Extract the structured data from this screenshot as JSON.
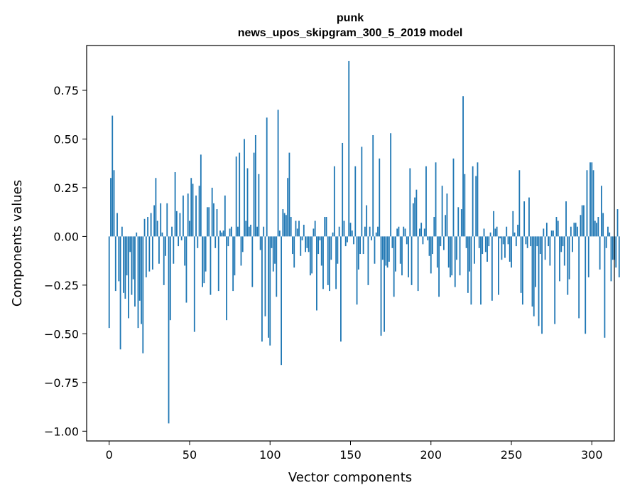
{
  "chart_data": {
    "type": "bar",
    "title": "punk",
    "subtitle": "news_upos_skipgram_300_5_2019 model",
    "xlabel": "Vector components",
    "ylabel": "Components values",
    "xlim": [
      -14,
      314
    ],
    "ylim": [
      -1.05,
      0.98
    ],
    "xticks": [
      0,
      50,
      100,
      150,
      200,
      250,
      300
    ],
    "yticks": [
      -1.0,
      -0.75,
      -0.5,
      -0.25,
      0.0,
      0.25,
      0.5,
      0.75
    ],
    "ytick_labels": [
      "−1.00",
      "−0.75",
      "−0.50",
      "−0.25",
      "0.00",
      "0.25",
      "0.50",
      "0.75"
    ],
    "bar_color": "#1f77b4",
    "grid": false,
    "values": [
      -0.47,
      0.3,
      0.62,
      0.34,
      -0.28,
      0.12,
      -0.23,
      -0.58,
      0.05,
      -0.29,
      -0.32,
      -0.2,
      -0.42,
      -0.08,
      -0.3,
      -0.22,
      -0.36,
      0.02,
      -0.47,
      -0.33,
      -0.45,
      -0.6,
      0.09,
      -0.21,
      0.1,
      -0.18,
      0.12,
      -0.17,
      0.16,
      0.3,
      0.08,
      -0.14,
      0.17,
      0.02,
      -0.25,
      -0.1,
      0.17,
      -0.96,
      -0.43,
      0.05,
      -0.14,
      0.33,
      0.13,
      -0.05,
      0.12,
      -0.02,
      0.21,
      -0.15,
      -0.34,
      0.22,
      0.08,
      0.3,
      0.27,
      -0.49,
      0.21,
      -0.06,
      0.26,
      0.42,
      -0.26,
      -0.24,
      -0.18,
      0.15,
      0.15,
      -0.3,
      0.25,
      0.17,
      -0.06,
      0.14,
      -0.28,
      0.03,
      0.02,
      0.03,
      0.21,
      -0.43,
      -0.05,
      0.04,
      0.05,
      -0.28,
      -0.2,
      0.41,
      0.05,
      0.43,
      -0.15,
      -0.08,
      0.5,
      0.08,
      0.35,
      0.05,
      0.06,
      -0.26,
      0.43,
      0.52,
      0.05,
      0.32,
      -0.07,
      -0.54,
      0.05,
      -0.41,
      0.61,
      -0.52,
      -0.56,
      -0.06,
      -0.18,
      -0.14,
      -0.31,
      0.65,
      0.03,
      -0.66,
      0.14,
      0.12,
      0.11,
      0.3,
      0.43,
      0.1,
      -0.09,
      -0.16,
      0.08,
      0.04,
      0.08,
      -0.1,
      -0.02,
      0.06,
      -0.08,
      -0.06,
      -0.08,
      -0.2,
      -0.19,
      0.04,
      0.08,
      -0.38,
      -0.09,
      -0.02,
      -0.15,
      -0.27,
      0.1,
      0.1,
      -0.25,
      -0.28,
      -0.12,
      0.02,
      0.36,
      -0.27,
      -0.14,
      0.05,
      -0.54,
      0.48,
      0.08,
      -0.05,
      -0.03,
      0.9,
      0.07,
      0.03,
      -0.04,
      0.36,
      -0.35,
      -0.17,
      -0.09,
      0.46,
      -0.09,
      0.05,
      0.16,
      -0.25,
      0.05,
      -0.02,
      0.52,
      -0.14,
      0.02,
      0.05,
      0.4,
      -0.51,
      -0.12,
      -0.49,
      -0.15,
      -0.16,
      -0.13,
      0.53,
      -0.06,
      -0.31,
      -0.18,
      0.04,
      0.05,
      -0.14,
      -0.2,
      0.05,
      0.04,
      -0.04,
      -0.21,
      0.35,
      -0.25,
      0.17,
      0.2,
      0.24,
      -0.28,
      0.04,
      0.07,
      -0.04,
      0.04,
      0.36,
      -0.02,
      -0.1,
      -0.19,
      -0.09,
      0.1,
      0.38,
      -0.16,
      -0.31,
      -0.05,
      0.26,
      -0.07,
      0.11,
      0.22,
      -0.16,
      -0.21,
      -0.2,
      0.4,
      -0.26,
      -0.12,
      0.15,
      -0.2,
      0.14,
      0.72,
      0.32,
      -0.06,
      -0.29,
      -0.18,
      -0.35,
      0.36,
      -0.14,
      0.31,
      0.38,
      -0.06,
      -0.35,
      -0.09,
      0.04,
      -0.08,
      -0.13,
      -0.05,
      0.02,
      -0.33,
      0.13,
      0.04,
      0.05,
      -0.3,
      -0.01,
      -0.12,
      -0.04,
      -0.11,
      0.05,
      -0.04,
      -0.13,
      -0.16,
      0.13,
      0.02,
      -0.05,
      0.06,
      0.34,
      -0.29,
      -0.35,
      0.18,
      -0.04,
      -0.06,
      0.2,
      -0.05,
      -0.36,
      -0.41,
      -0.26,
      -0.05,
      -0.46,
      -0.09,
      -0.5,
      0.04,
      -0.12,
      0.07,
      -0.05,
      -0.15,
      0.03,
      0.03,
      -0.45,
      0.1,
      0.08,
      -0.23,
      -0.08,
      -0.05,
      -0.15,
      0.18,
      -0.3,
      -0.22,
      0.05,
      -0.08,
      0.07,
      0.07,
      0.05,
      -0.42,
      0.11,
      0.16,
      0.16,
      -0.5,
      0.34,
      -0.21,
      0.38,
      0.38,
      0.34,
      0.08,
      0.07,
      0.1,
      -0.17,
      0.26,
      0.12,
      -0.52,
      -0.06,
      0.05,
      0.02,
      -0.23,
      -0.12,
      -0.12,
      -0.16,
      0.14,
      -0.21
    ]
  }
}
